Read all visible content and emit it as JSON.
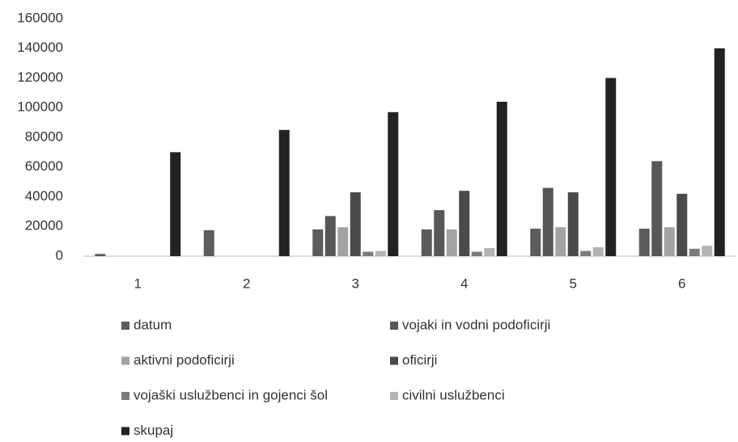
{
  "chart_data": {
    "type": "bar",
    "categories": [
      "1",
      "2",
      "3",
      "4",
      "5",
      "6"
    ],
    "series": [
      {
        "name": "datum",
        "color": "#5c5c5c",
        "values": [
          1500,
          17500,
          18000,
          18000,
          18500,
          18500
        ]
      },
      {
        "name": "vojaki in vodni podoficirji",
        "color": "#575757",
        "values": [
          0,
          0,
          27000,
          31000,
          46000,
          64000
        ]
      },
      {
        "name": "aktivni podoficirji",
        "color": "#a3a3a3",
        "values": [
          0,
          0,
          19500,
          18000,
          19500,
          19500
        ]
      },
      {
        "name": "oficirji",
        "color": "#4a4a4a",
        "values": [
          0,
          0,
          43000,
          44000,
          43000,
          42000
        ]
      },
      {
        "name": "vojaški uslužbenci in gojenci šol",
        "color": "#7b7b7b",
        "values": [
          0,
          0,
          3000,
          3000,
          3500,
          5000
        ]
      },
      {
        "name": "civilni uslužbenci",
        "color": "#b3b3b3",
        "values": [
          0,
          0,
          3500,
          5500,
          6000,
          7000
        ]
      },
      {
        "name": "skupaj",
        "color": "#222222",
        "values": [
          70000,
          85000,
          97000,
          104000,
          120000,
          140000
        ]
      }
    ],
    "ylim": [
      0,
      160000
    ],
    "yticks": [
      0,
      20000,
      40000,
      60000,
      80000,
      100000,
      120000,
      140000,
      160000
    ],
    "grid": false,
    "legend": "bottom"
  }
}
